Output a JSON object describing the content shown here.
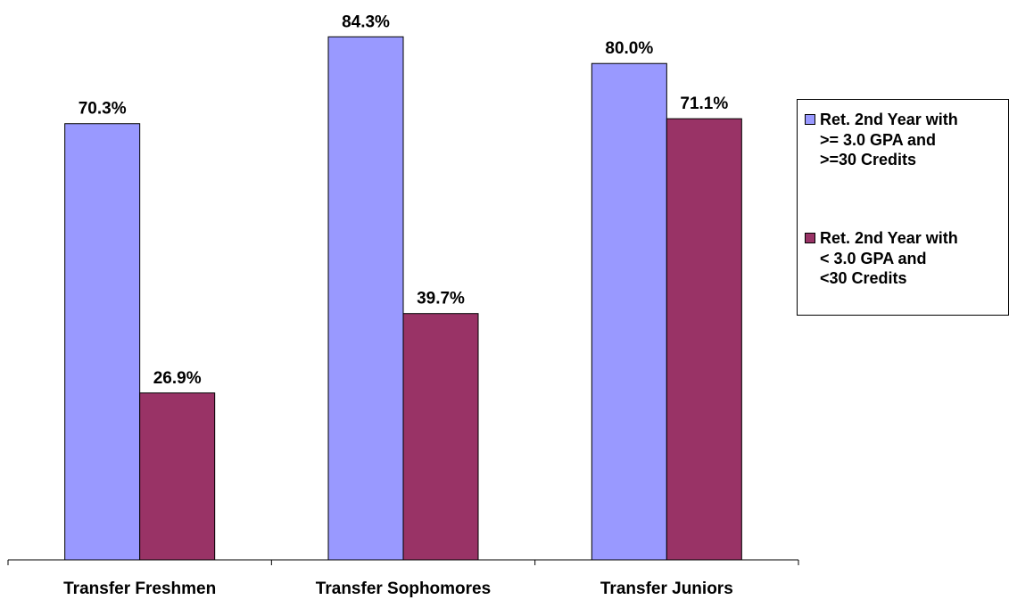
{
  "chart_data": {
    "type": "bar",
    "categories": [
      "Transfer Freshmen",
      "Transfer Sophomores",
      "Transfer Juniors"
    ],
    "series": [
      {
        "name": "Ret. 2nd Year with >= 3.0 GPA and >=30 Credits",
        "values": [
          70.3,
          84.3,
          80.0
        ],
        "labels": [
          "70.3%",
          "84.3%",
          "80.0%"
        ],
        "color": "#9999ff"
      },
      {
        "name": "Ret. 2nd Year with < 3.0 GPA and <30 Credits",
        "values": [
          26.9,
          39.7,
          71.1
        ],
        "labels": [
          "26.9%",
          "39.7%",
          "71.1%"
        ],
        "color": "#993366"
      }
    ],
    "ylim": [
      0,
      90
    ],
    "grid": false,
    "legend_position": "right"
  },
  "legend": {
    "items": [
      {
        "lines": [
          "Ret. 2nd Year with",
          ">= 3.0 GPA and",
          ">=30 Credits"
        ]
      },
      {
        "lines": [
          "Ret. 2nd Year with",
          "< 3.0 GPA and",
          "<30 Credits"
        ]
      }
    ]
  }
}
